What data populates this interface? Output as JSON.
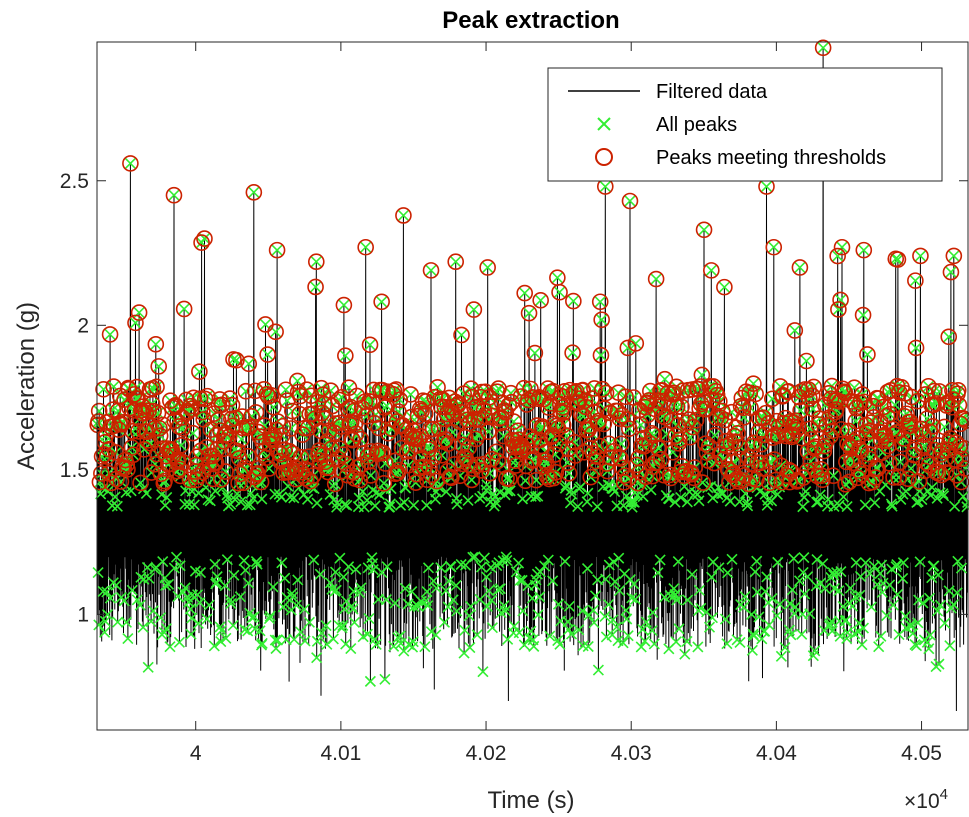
{
  "chart_data": {
    "type": "line",
    "title": "Peak extraction",
    "xlabel": "Time (s)",
    "ylabel": "Acceleration (g)",
    "x_exponent_label": "×10",
    "x_exponent_power": "4",
    "xlim": [
      39932,
      40532
    ],
    "ylim": [
      0.6,
      2.98
    ],
    "x_ticks": [
      40000,
      40100,
      40200,
      40300,
      40400,
      40500
    ],
    "x_tick_labels": [
      "4",
      "4.01",
      "4.02",
      "4.03",
      "4.04",
      "4.05"
    ],
    "y_ticks": [
      1,
      1.5,
      2,
      2.5
    ],
    "y_tick_labels": [
      "1",
      "1.5",
      "2",
      "2.5"
    ],
    "grid": false,
    "legend_position": "top-right",
    "colors": {
      "line": "#000000",
      "all_peaks": "#33ee33",
      "threshold_peaks": "#cc2200"
    },
    "series": [
      {
        "name": "Filtered data",
        "style": "line",
        "description_count": 2400,
        "baseline": 1.25,
        "min": 0.62,
        "max": 2.96
      },
      {
        "name": "All peaks",
        "style": "x-marker"
      },
      {
        "name": "Peaks meeting thresholds",
        "style": "circle-marker",
        "highlight_points": [
          [
            39955,
            2.56
          ],
          [
            39985,
            2.45
          ],
          [
            40006,
            2.3
          ],
          [
            40040,
            2.46
          ],
          [
            40056,
            2.26
          ],
          [
            40083,
            2.22
          ],
          [
            40102,
            2.07
          ],
          [
            40117,
            2.27
          ],
          [
            40143,
            2.38
          ],
          [
            40162,
            2.19
          ],
          [
            40179,
            2.22
          ],
          [
            40201,
            2.2
          ],
          [
            40282,
            2.48
          ],
          [
            40299,
            2.43
          ],
          [
            40317,
            2.16
          ],
          [
            40355,
            2.19
          ],
          [
            40393,
            2.48
          ],
          [
            40398,
            2.27
          ],
          [
            40416,
            2.2
          ],
          [
            40432,
            2.96
          ],
          [
            40445,
            2.27
          ],
          [
            40460,
            2.26
          ],
          [
            40482,
            2.23
          ],
          [
            40499,
            2.24
          ],
          [
            40522,
            2.24
          ]
        ]
      }
    ]
  }
}
